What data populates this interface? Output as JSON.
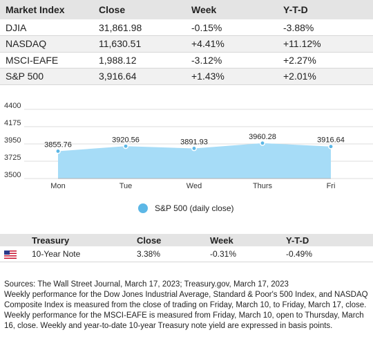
{
  "index_table": {
    "headers": [
      "Market Index",
      "Close",
      "Week",
      "Y-T-D"
    ],
    "rows": [
      [
        "DJIA",
        "31,861.98",
        "-0.15%",
        "-3.88%"
      ],
      [
        "NASDAQ",
        "11,630.51",
        "+4.41%",
        "+11.12%"
      ],
      [
        "MSCI-EAFE",
        "1,988.12",
        "-3.12%",
        "+2.27%"
      ],
      [
        "S&P 500",
        "3,916.64",
        "+1.43%",
        "+2.01%"
      ]
    ]
  },
  "chart_data": {
    "type": "area",
    "categories": [
      "Mon",
      "Tue",
      "Wed",
      "Thurs",
      "Fri"
    ],
    "series": [
      {
        "name": "S&P 500 (daily close)",
        "values": [
          3855.76,
          3920.56,
          3891.93,
          3960.28,
          3916.64
        ],
        "labels": [
          "3855.76",
          "3920.56",
          "3891.93",
          "3960.28",
          "3916.64"
        ]
      }
    ],
    "y_ticks": [
      "4400",
      "4175",
      "3950",
      "3725",
      "3500"
    ],
    "ylim": [
      3500,
      4400
    ],
    "grid": true,
    "legend_position": "bottom",
    "fill_color": "#a6dcf7",
    "marker_color": "#5cb7e6",
    "title": "",
    "xlabel": "",
    "ylabel": ""
  },
  "legend": {
    "label": "S&P 500 (daily close)"
  },
  "treasury_table": {
    "headers": [
      "",
      "Treasury",
      "Close",
      "Week",
      "Y-T-D"
    ],
    "rows": [
      {
        "icon": "us-flag-icon",
        "name": "10-Year Note",
        "close": "3.38%",
        "week": "-0.31%",
        "ytd": "-0.49%"
      }
    ]
  },
  "notes": {
    "sources": "Sources: The Wall Street Journal, March 17, 2023; Treasury.gov, March 17, 2023",
    "body": "Weekly performance for the Dow Jones Industrial Average, Standard & Poor's 500 Index, and NASDAQ Composite Index is measured from the close of trading on Friday, March 10, to Friday, March 17, close. Weekly performance for the MSCI-EAFE is measured from Friday, March 10, open to Thursday, March 16, close. Weekly and year-to-date 10-year Treasury note yield are expressed in basis points."
  }
}
